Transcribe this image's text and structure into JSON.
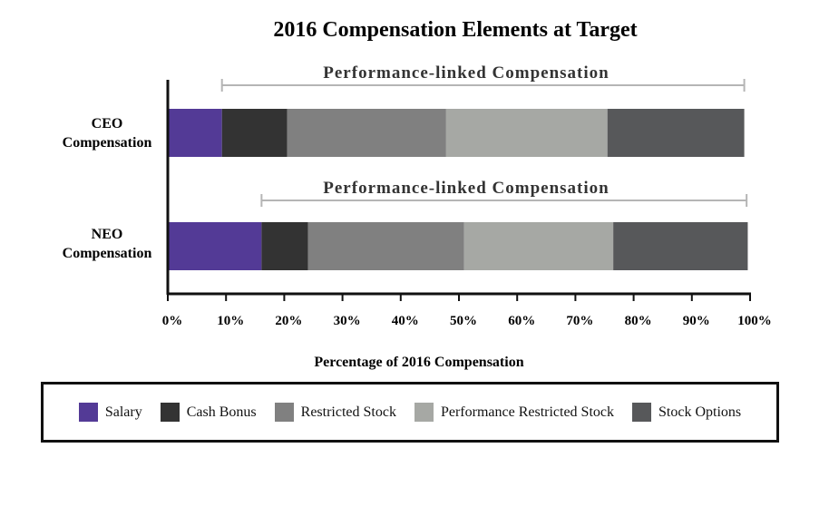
{
  "chart_data": {
    "type": "bar",
    "orientation": "horizontal",
    "stacked": true,
    "title": "2016 Compensation Elements at Target",
    "xlabel": "Percentage of 2016 Compensation",
    "ylabel": "",
    "xlim": [
      0,
      100
    ],
    "x_ticks": [
      "0%",
      "10%",
      "20%",
      "30%",
      "40%",
      "50%",
      "60%",
      "70%",
      "80%",
      "90%",
      "100%"
    ],
    "categories": [
      "CEO Compensation",
      "NEO Compensation"
    ],
    "category_lines": [
      [
        "CEO",
        "Compensation"
      ],
      [
        "NEO",
        "Compensation"
      ]
    ],
    "series": [
      {
        "name": "Salary",
        "color": "#533a96",
        "values": [
          9.3,
          16.1
        ]
      },
      {
        "name": "Cash Bonus",
        "color": "#333333",
        "values": [
          11.2,
          8.0
        ]
      },
      {
        "name": "Restricted Stock",
        "color": "#808080",
        "values": [
          27.3,
          26.8
        ]
      },
      {
        "name": "Performance Restricted Stock",
        "color": "#a6a8a4",
        "values": [
          27.7,
          25.6
        ]
      },
      {
        "name": "Stock Options",
        "color": "#57585a",
        "values": [
          23.5,
          23.1
        ]
      }
    ],
    "annotations": [
      {
        "text": "Performance-linked Compensation",
        "category": "CEO Compensation",
        "range": [
          9.3,
          99.0
        ]
      },
      {
        "text": "Performance-linked Compensation",
        "category": "NEO Compensation",
        "range": [
          16.1,
          99.4
        ]
      }
    ],
    "grid": false,
    "legend_position": "bottom"
  }
}
